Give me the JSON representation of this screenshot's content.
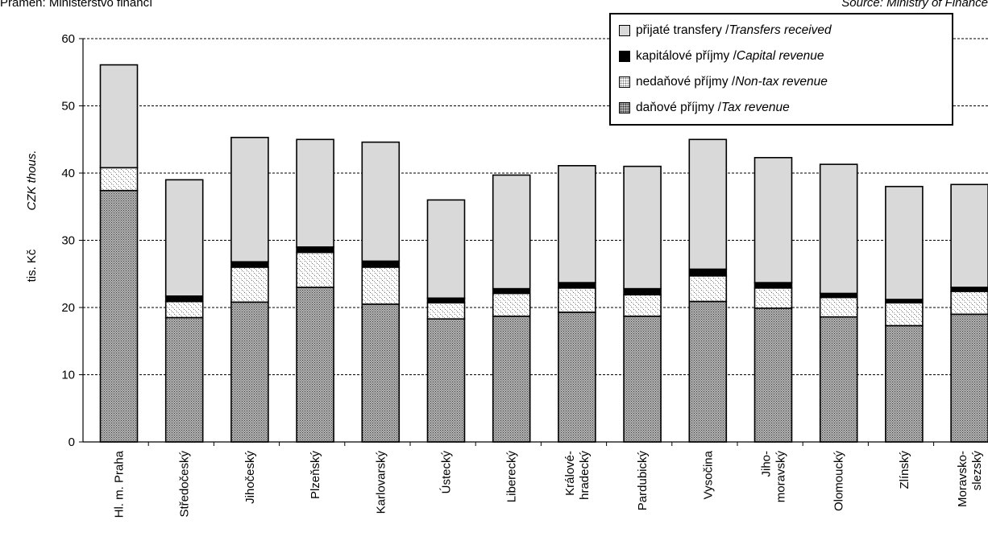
{
  "header": {
    "source_cs": "Pramen: Ministerstvo financí",
    "source_en": "Source: Ministry of Finance"
  },
  "legend": {
    "items": [
      {
        "cs": "přijaté transfery / ",
        "en": "Transfers received"
      },
      {
        "cs": "kapitálové příjmy / ",
        "en": "Capital revenue"
      },
      {
        "cs": "nedaňové příjmy / ",
        "en": "Non-tax revenue"
      },
      {
        "cs": "daňové příjmy / ",
        "en": "Tax revenue"
      }
    ]
  },
  "chart_data": {
    "type": "bar",
    "stacked": true,
    "ylabel_cs": "tis. Kč",
    "ylabel_en": "CZK thous.",
    "ylim": [
      0,
      60
    ],
    "yticks": [
      0,
      10,
      20,
      30,
      40,
      50,
      60
    ],
    "grid": "horizontal dashed",
    "legend_position": "top-right",
    "categories": [
      [
        "Hl. m. Praha"
      ],
      [
        "Středočeský"
      ],
      [
        "Jihočeský"
      ],
      [
        "Plzeňský"
      ],
      [
        "Karlovarský"
      ],
      [
        "Ústecký"
      ],
      [
        "Liberecký"
      ],
      [
        "Králové-",
        "hradecký"
      ],
      [
        "Pardubický"
      ],
      [
        "Vysočina"
      ],
      [
        "Jiho-",
        "moravský"
      ],
      [
        "Olomoucký"
      ],
      [
        "Zlínský"
      ],
      [
        "Moravsko-",
        "slezský"
      ]
    ],
    "series": [
      {
        "name": "daňové příjmy / Tax revenue",
        "color": "#8c8c8c",
        "values": [
          37.4,
          18.5,
          20.8,
          23.0,
          20.5,
          18.3,
          18.7,
          19.3,
          18.7,
          20.9,
          19.9,
          18.6,
          17.3,
          19.0
        ]
      },
      {
        "name": "nedaňové příjmy / Non-tax revenue",
        "color": "#f2f2f2",
        "values": [
          3.4,
          2.4,
          5.2,
          5.2,
          5.5,
          2.4,
          3.4,
          3.6,
          3.2,
          3.8,
          3.0,
          2.9,
          3.4,
          3.4
        ]
      },
      {
        "name": "kapitálové příjmy / Capital revenue",
        "color": "#000000",
        "values": [
          0.0,
          0.8,
          0.8,
          0.8,
          0.9,
          0.7,
          0.7,
          0.8,
          0.9,
          1.0,
          0.8,
          0.6,
          0.5,
          0.6
        ]
      },
      {
        "name": "přijaté transfery / Transfers received",
        "color": "#d9d9d9",
        "values": [
          15.3,
          17.3,
          18.5,
          16.0,
          17.7,
          14.6,
          16.9,
          17.4,
          18.2,
          19.3,
          18.6,
          19.2,
          16.8,
          15.3
        ]
      }
    ]
  }
}
